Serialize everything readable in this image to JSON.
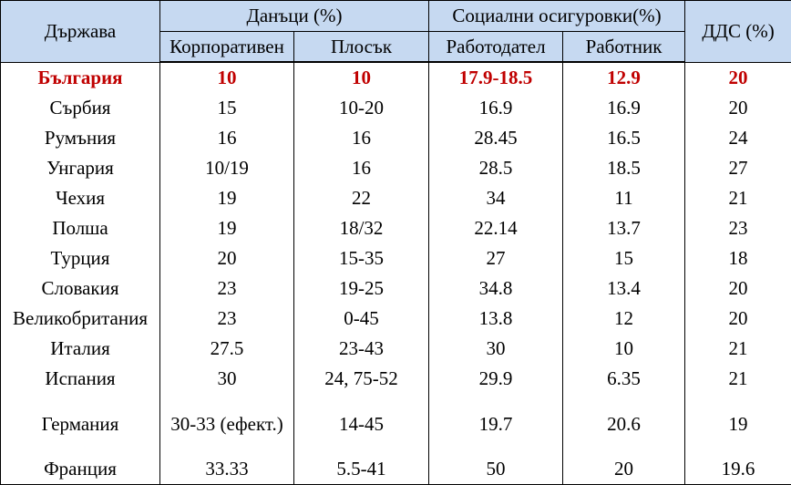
{
  "header": {
    "country": "Държава",
    "taxes": "Данъци (%)",
    "social": "Социални осигуровки(%)",
    "vat": "ДДС (%)",
    "subheaders": [
      "Корпоративен",
      "Плосък",
      "Работодател",
      "Работник"
    ]
  },
  "table": {
    "rows": [
      [
        "България",
        "10",
        "10",
        "17.9-18.5",
        "12.9",
        "20"
      ],
      [
        "Сърбия",
        "15",
        "10-20",
        "16.9",
        "16.9",
        "20"
      ],
      [
        "Румъния",
        "16",
        "16",
        "28.45",
        "16.5",
        "24"
      ],
      [
        "Унгария",
        "10/19",
        "16",
        "28.5",
        "18.5",
        "27"
      ],
      [
        "Чехия",
        "19",
        "22",
        "34",
        "11",
        "21"
      ],
      [
        "Полша",
        "19",
        "18/32",
        "22.14",
        "13.7",
        "23"
      ],
      [
        "Турция",
        "20",
        "15-35",
        "27",
        "15",
        "18"
      ],
      [
        "Словакия",
        "23",
        "19-25",
        "34.8",
        "13.4",
        "20"
      ],
      [
        "Великобритания",
        "23",
        "0-45",
        "13.8",
        "12",
        "20"
      ],
      [
        "Италия",
        "27.5",
        "23-43",
        "30",
        "10",
        "21"
      ],
      [
        "Испания",
        "30",
        "24, 75-52",
        "29.9",
        "6.35",
        "21"
      ],
      [
        "Германия",
        "30-33 (ефект.)",
        "14-45",
        "19.7",
        "20.6",
        "19"
      ],
      [
        "Франция",
        "33.33",
        "5.5-41",
        "50",
        "20",
        "19.6"
      ]
    ]
  }
}
